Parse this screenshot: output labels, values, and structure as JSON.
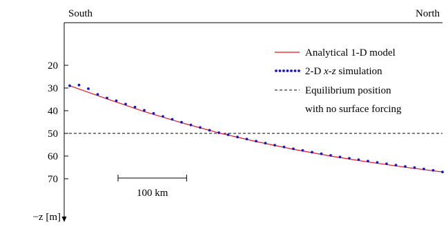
{
  "chart_data": {
    "type": "line",
    "title": "",
    "xlabel": "",
    "ylabel": "−z [m]",
    "top_labels": {
      "left": "South",
      "right": "North"
    },
    "y_ticks": [
      20,
      30,
      40,
      50,
      60,
      70
    ],
    "ylim": [
      0,
      84
    ],
    "y_reversed": true,
    "xlim": [
      0,
      1
    ],
    "grid": false,
    "legend_position": "top-right",
    "scale_bar": {
      "label": "100 km",
      "length": 0.184
    },
    "series": [
      {
        "name": "Analytical 1-D model",
        "style": "solid",
        "color": "#e8141e",
        "x": [
          0,
          0.1,
          0.2,
          0.3,
          0.4,
          0.5,
          0.6,
          0.7,
          0.8,
          0.9,
          1.0
        ],
        "y": [
          29,
          34.8,
          40.4,
          45.3,
          49.8,
          53.6,
          57.0,
          60.0,
          62.6,
          64.9,
          67
        ]
      },
      {
        "name": "2-D x-z simulation",
        "name_parts": [
          "2-D ",
          "x",
          "-",
          "z",
          " simulation"
        ],
        "style": "dotted",
        "color": "#1414c8",
        "x": [
          0,
          0.025,
          0.05,
          0.075,
          0.1,
          0.125,
          0.15,
          0.175,
          0.2,
          0.225,
          0.25,
          0.275,
          0.3,
          0.325,
          0.35,
          0.375,
          0.4,
          0.425,
          0.45,
          0.475,
          0.5,
          0.525,
          0.55,
          0.575,
          0.6,
          0.625,
          0.65,
          0.675,
          0.7,
          0.725,
          0.75,
          0.775,
          0.8,
          0.825,
          0.85,
          0.875,
          0.9,
          0.925,
          0.95,
          0.975,
          1.0
        ],
        "y": [
          29,
          28.7,
          30.3,
          32.8,
          34.4,
          35.6,
          37.1,
          38.4,
          39.8,
          41.2,
          42.5,
          43.8,
          45.1,
          46.3,
          47.4,
          48.6,
          49.7,
          50.6,
          51.6,
          52.5,
          53.4,
          54.3,
          55.2,
          56.0,
          56.8,
          57.5,
          58.3,
          59.0,
          59.7,
          60.4,
          61.0,
          61.6,
          62.2,
          62.8,
          63.4,
          64.0,
          64.6,
          65.1,
          65.7,
          66.3,
          67
        ]
      },
      {
        "name": "Equilibrium position\nwith no surface forcing",
        "name_lines": [
          "Equilibrium position",
          "with no surface forcing"
        ],
        "style": "dashed",
        "color": "#000000",
        "x": [
          0,
          1
        ],
        "y": [
          50,
          50
        ]
      }
    ]
  }
}
